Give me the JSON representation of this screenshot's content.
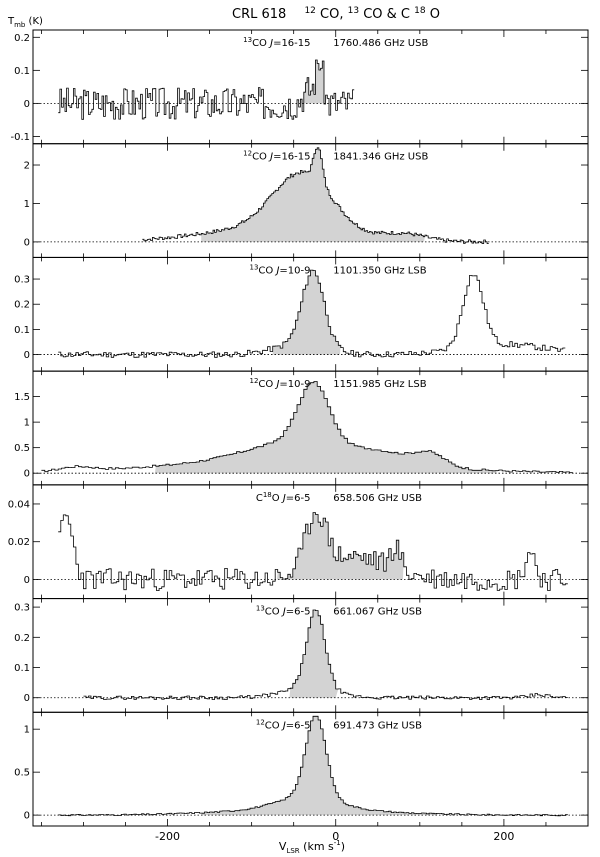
{
  "figure": {
    "title_main": "CRL 618",
    "title_lines": {
      "a": "12",
      "b": "CO, ",
      "c": "13",
      "d": "CO & C",
      "e": "18",
      "f": "O"
    },
    "y_axis": {
      "main": "T",
      "sub": "mb",
      "unit": " (K)"
    },
    "x_axis": {
      "main": "V",
      "sub": "LSR",
      "unit_a": " (km s",
      "unit_sup": "-1",
      "unit_b": ")"
    }
  },
  "chart_data": {
    "type": "line",
    "style": "step histogram with shaded line emission",
    "xlim": [
      -360,
      300
    ],
    "x_ticks": [
      -200,
      0,
      200
    ],
    "x_tick_labels": [
      "-200",
      "0",
      "200"
    ],
    "baseline": "dotted at 0",
    "panels": [
      {
        "iso": "13",
        "mol": "CO",
        "trans": "J=16-15",
        "freq": "1760.486 GHz USB",
        "ylim": [
          -0.11,
          0.21
        ],
        "y_ticks": [
          -0.1,
          0,
          0.1,
          0.2
        ],
        "y_tick_labels": [
          "-0.1",
          "0",
          "0.1",
          "0.2"
        ],
        "x_range": [
          -330,
          20
        ],
        "noise": 0.05,
        "seed": 3,
        "shade": [
          -45,
          -12
        ],
        "components": [
          {
            "c": -20,
            "w": 4,
            "a": 0.12
          },
          {
            "c": -32,
            "w": 8,
            "a": 0.04
          }
        ]
      },
      {
        "iso": "12",
        "mol": "CO",
        "trans": "J=16-15",
        "freq": "1841.346 GHz USB",
        "ylim": [
          -0.3,
          2.45
        ],
        "y_ticks": [
          0,
          1,
          2
        ],
        "y_tick_labels": [
          "0",
          "1",
          "2"
        ],
        "x_range": [
          -230,
          180
        ],
        "noise": 0.05,
        "seed": 7,
        "shade": [
          -160,
          105
        ],
        "components": [
          {
            "c": -40,
            "w": 35,
            "a": 1.5
          },
          {
            "c": -22,
            "w": 5,
            "a": 0.9
          },
          {
            "c": -80,
            "w": 80,
            "a": 0.35
          },
          {
            "c": 80,
            "w": 25,
            "a": 0.18
          }
        ]
      },
      {
        "iso": "13",
        "mol": "CO",
        "trans": "J=10-9",
        "freq": "1101.350 GHz LSB",
        "ylim": [
          -0.05,
          0.37
        ],
        "y_ticks": [
          0,
          0.1,
          0.2,
          0.3
        ],
        "y_tick_labels": [
          "0",
          "0.1",
          "0.2",
          "0.3"
        ],
        "x_range": [
          -330,
          270
        ],
        "noise": 0.012,
        "seed": 11,
        "shade": [
          -75,
          5
        ],
        "components": [
          {
            "c": -28,
            "w": 13,
            "a": 0.3
          },
          {
            "c": -45,
            "w": 30,
            "a": 0.04
          },
          {
            "c": 162,
            "w": 12,
            "a": 0.29
          },
          {
            "c": 200,
            "w": 50,
            "a": 0.04
          }
        ]
      },
      {
        "iso": "12",
        "mol": "CO",
        "trans": "J=10-9",
        "freq": "1151.985 GHz LSB",
        "ylim": [
          -0.15,
          1.92
        ],
        "y_ticks": [
          0,
          0.5,
          1,
          1.5
        ],
        "y_tick_labels": [
          "0",
          "0.5",
          "1",
          "1.5"
        ],
        "x_range": [
          -350,
          280
        ],
        "noise": 0.02,
        "seed": 17,
        "shade": [
          -215,
          190
        ],
        "components": [
          {
            "c": -28,
            "w": 18,
            "a": 1.15
          },
          {
            "c": -40,
            "w": 60,
            "a": 0.4
          },
          {
            "c": -60,
            "w": 140,
            "a": 0.25
          },
          {
            "c": 110,
            "w": 18,
            "a": 0.25
          },
          {
            "c": 60,
            "w": 30,
            "a": 0.15
          },
          {
            "c": -310,
            "w": 20,
            "a": 0.08
          }
        ]
      },
      {
        "iso": "",
        "mol": "C",
        "iso2": "18",
        "mol2": "O",
        "trans": "J=6-5",
        "freq": "658.506 GHz USB",
        "ylim": [
          -0.008,
          0.048
        ],
        "y_ticks": [
          0,
          0.02,
          0.04
        ],
        "y_tick_labels": [
          "0",
          "0.02",
          "0.04"
        ],
        "x_range": [
          -330,
          275
        ],
        "noise": 0.006,
        "seed": 23,
        "shade": [
          -70,
          80
        ],
        "components": [
          {
            "c": -25,
            "w": 12,
            "a": 0.03
          },
          {
            "c": 20,
            "w": 40,
            "a": 0.012
          },
          {
            "c": 70,
            "w": 6,
            "a": 0.012
          },
          {
            "c": -322,
            "w": 8,
            "a": 0.033
          },
          {
            "c": 230,
            "w": 6,
            "a": 0.015
          }
        ]
      },
      {
        "iso": "13",
        "mol": "CO",
        "trans": "J=6-5",
        "freq": "661.067 GHz USB",
        "ylim": [
          -0.035,
          0.315
        ],
        "y_ticks": [
          0,
          0.1,
          0.2,
          0.3
        ],
        "y_tick_labels": [
          "0",
          "0.1",
          "0.2",
          "0.3"
        ],
        "x_range": [
          -300,
          275
        ],
        "noise": 0.006,
        "seed": 29,
        "shade": [
          -55,
          0
        ],
        "components": [
          {
            "c": -25,
            "w": 11,
            "a": 0.26
          },
          {
            "c": -35,
            "w": 30,
            "a": 0.03
          },
          {
            "c": 240,
            "w": 10,
            "a": 0.01
          }
        ]
      },
      {
        "iso": "12",
        "mol": "CO",
        "trans": "J=6-5",
        "freq": "691.473 GHz USB",
        "ylim": [
          -0.08,
          1.15
        ],
        "y_ticks": [
          0,
          0.5,
          1
        ],
        "y_tick_labels": [
          "0",
          "0.5",
          "1"
        ],
        "x_range": [
          -330,
          275
        ],
        "noise": 0.008,
        "seed": 31,
        "shade": [
          -160,
          120
        ],
        "components": [
          {
            "c": -25,
            "w": 12,
            "a": 0.95
          },
          {
            "c": -35,
            "w": 35,
            "a": 0.15
          },
          {
            "c": -40,
            "w": 90,
            "a": 0.07
          }
        ]
      }
    ]
  }
}
